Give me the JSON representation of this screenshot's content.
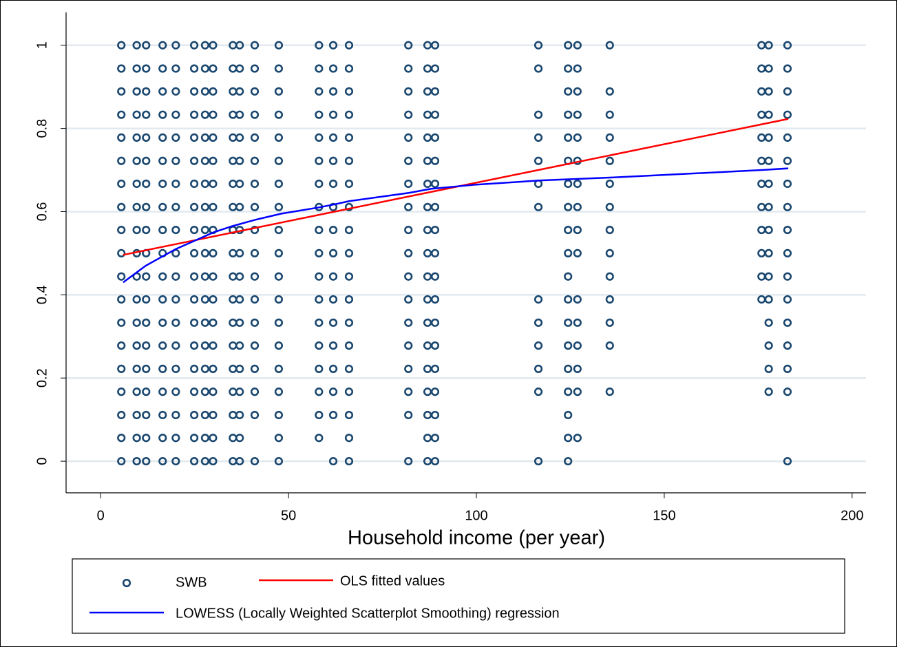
{
  "chart_data": {
    "type": "scatter",
    "x_label": "Household income  (per year)",
    "xlim": [
      -9.2,
      203.7
    ],
    "ylim": [
      -0.076,
      1.079
    ],
    "xticks": [
      0,
      50,
      100,
      150,
      200
    ],
    "yticks": [
      0,
      0.2,
      0.4,
      0.6,
      0.8,
      1
    ],
    "grid": true,
    "series": [
      {
        "name": "SWB",
        "type": "scatter",
        "color": "#1a476f",
        "x": [
          5.5,
          5.5,
          5.5,
          5.5,
          5.5,
          5.5,
          5.5,
          5.5,
          5.5,
          5.5,
          5.5,
          5.5,
          5.5,
          5.5,
          5.5,
          5.5,
          5.5,
          5.5,
          5.5,
          9.6,
          9.6,
          9.6,
          9.6,
          9.6,
          9.6,
          9.6,
          9.6,
          9.6,
          9.6,
          9.6,
          9.6,
          9.6,
          9.6,
          9.6,
          9.6,
          9.6,
          9.6,
          9.6,
          12.1,
          12.1,
          12.1,
          12.1,
          12.1,
          12.1,
          12.1,
          12.1,
          12.1,
          12.1,
          12.1,
          12.1,
          12.1,
          12.1,
          12.1,
          12.1,
          12.1,
          12.1,
          12.1,
          16.5,
          16.5,
          16.5,
          16.5,
          16.5,
          16.5,
          16.5,
          16.5,
          16.5,
          16.5,
          16.5,
          16.5,
          16.5,
          16.5,
          16.5,
          16.5,
          16.5,
          16.5,
          16.5,
          20,
          20,
          20,
          20,
          20,
          20,
          20,
          20,
          20,
          20,
          20,
          20,
          20,
          20,
          20,
          20,
          20,
          20,
          20,
          24.9,
          24.9,
          24.9,
          24.9,
          24.9,
          24.9,
          24.9,
          24.9,
          24.9,
          24.9,
          24.9,
          24.9,
          24.9,
          24.9,
          24.9,
          24.9,
          24.9,
          24.9,
          24.9,
          27.8,
          27.8,
          27.8,
          27.8,
          27.8,
          27.8,
          27.8,
          27.8,
          27.8,
          27.8,
          27.8,
          27.8,
          27.8,
          27.8,
          27.8,
          27.8,
          27.8,
          27.8,
          27.8,
          29.9,
          29.9,
          29.9,
          29.9,
          29.9,
          29.9,
          29.9,
          29.9,
          29.9,
          29.9,
          29.9,
          29.9,
          29.9,
          29.9,
          29.9,
          29.9,
          29.9,
          29.9,
          29.9,
          35.2,
          35.2,
          35.2,
          35.2,
          35.2,
          35.2,
          35.2,
          35.2,
          35.2,
          35.2,
          35.2,
          35.2,
          35.2,
          35.2,
          35.2,
          35.2,
          35.2,
          35.2,
          35.2,
          37,
          37,
          37,
          37,
          37,
          37,
          37,
          37,
          37,
          37,
          37,
          37,
          37,
          37,
          37,
          37,
          37,
          37,
          37,
          41,
          41,
          41,
          41,
          41,
          41,
          41,
          41,
          41,
          41,
          41,
          41,
          41,
          41,
          41,
          41,
          41,
          41,
          47.4,
          47.4,
          47.4,
          47.4,
          47.4,
          47.4,
          47.4,
          47.4,
          47.4,
          47.4,
          47.4,
          47.4,
          47.4,
          47.4,
          47.4,
          47.4,
          47.4,
          47.4,
          47.4,
          58.1,
          58.1,
          58.1,
          58.1,
          58.1,
          58.1,
          58.1,
          58.1,
          58.1,
          58.1,
          58.1,
          58.1,
          58.1,
          58.1,
          58.1,
          58.1,
          58.1,
          58.1,
          61.9,
          61.9,
          61.9,
          61.9,
          61.9,
          61.9,
          61.9,
          61.9,
          61.9,
          61.9,
          61.9,
          61.9,
          61.9,
          61.9,
          61.9,
          61.9,
          61.9,
          61.9,
          66.1,
          66.1,
          66.1,
          66.1,
          66.1,
          66.1,
          66.1,
          66.1,
          66.1,
          66.1,
          66.1,
          66.1,
          66.1,
          66.1,
          66.1,
          66.1,
          66.1,
          66.1,
          66.1,
          81.9,
          81.9,
          81.9,
          81.9,
          81.9,
          81.9,
          81.9,
          81.9,
          81.9,
          81.9,
          81.9,
          81.9,
          81.9,
          81.9,
          81.9,
          81.9,
          81.9,
          81.9,
          87,
          87,
          87,
          87,
          87,
          87,
          87,
          87,
          87,
          87,
          87,
          87,
          87,
          87,
          87,
          87,
          87,
          87,
          87,
          89,
          89,
          89,
          89,
          89,
          89,
          89,
          89,
          89,
          89,
          89,
          89,
          89,
          89,
          89,
          89,
          89,
          89,
          89,
          116.5,
          116.5,
          116.5,
          116.5,
          116.5,
          116.5,
          116.5,
          116.5,
          116.5,
          116.5,
          116.5,
          116.5,
          116.5,
          124.4,
          124.4,
          124.4,
          124.4,
          124.4,
          124.4,
          124.4,
          124.4,
          124.4,
          124.4,
          124.4,
          124.4,
          124.4,
          124.4,
          124.4,
          124.4,
          124.4,
          124.4,
          124.4,
          126.9,
          126.9,
          126.9,
          126.9,
          126.9,
          126.9,
          126.9,
          126.9,
          126.9,
          126.9,
          126.9,
          126.9,
          126.9,
          126.9,
          126.9,
          126.9,
          135.5,
          135.5,
          135.5,
          135.5,
          135.5,
          135.5,
          135.5,
          135.5,
          135.5,
          135.5,
          135.5,
          135.5,
          135.5,
          135.5,
          175.9,
          175.9,
          175.9,
          175.9,
          175.9,
          175.9,
          175.9,
          175.9,
          175.9,
          175.9,
          175.9,
          175.9,
          177.8,
          177.8,
          177.8,
          177.8,
          177.8,
          177.8,
          177.8,
          177.8,
          177.8,
          177.8,
          177.8,
          177.8,
          177.8,
          177.8,
          177.8,
          177.8,
          182.8,
          182.8,
          182.8,
          182.8,
          182.8,
          182.8,
          182.8,
          182.8,
          182.8,
          182.8,
          182.8,
          182.8,
          182.8,
          182.8,
          182.8,
          182.8,
          182.8
        ],
        "values": [
          0,
          0.056,
          0.111,
          0.167,
          0.222,
          0.278,
          0.333,
          0.389,
          0.444,
          0.5,
          0.556,
          0.611,
          0.667,
          0.722,
          0.778,
          0.833,
          0.889,
          0.944,
          1,
          0,
          0.056,
          0.111,
          0.167,
          0.222,
          0.278,
          0.333,
          0.389,
          0.444,
          0.5,
          0.556,
          0.611,
          0.667,
          0.722,
          0.778,
          0.833,
          0.889,
          0.944,
          1,
          0,
          0.056,
          0.111,
          0.167,
          0.222,
          0.278,
          0.333,
          0.389,
          0.444,
          0.5,
          0.556,
          0.611,
          0.667,
          0.722,
          0.778,
          0.833,
          0.889,
          0.944,
          1,
          0,
          0.056,
          0.111,
          0.167,
          0.222,
          0.278,
          0.333,
          0.389,
          0.444,
          0.5,
          0.556,
          0.611,
          0.667,
          0.722,
          0.778,
          0.833,
          0.889,
          0.944,
          1,
          0,
          0.056,
          0.111,
          0.167,
          0.222,
          0.278,
          0.333,
          0.389,
          0.444,
          0.5,
          0.556,
          0.611,
          0.667,
          0.722,
          0.778,
          0.833,
          0.889,
          0.944,
          1,
          0,
          0.056,
          0.111,
          0.167,
          0.222,
          0.278,
          0.333,
          0.389,
          0.444,
          0.5,
          0.556,
          0.611,
          0.667,
          0.722,
          0.778,
          0.833,
          0.889,
          0.944,
          1,
          0,
          0.056,
          0.111,
          0.167,
          0.222,
          0.278,
          0.333,
          0.389,
          0.444,
          0.5,
          0.556,
          0.611,
          0.667,
          0.722,
          0.778,
          0.833,
          0.889,
          0.944,
          1,
          0,
          0.056,
          0.111,
          0.167,
          0.222,
          0.278,
          0.333,
          0.389,
          0.444,
          0.5,
          0.556,
          0.611,
          0.667,
          0.722,
          0.778,
          0.833,
          0.889,
          0.944,
          1,
          0,
          0.056,
          0.111,
          0.167,
          0.222,
          0.278,
          0.333,
          0.389,
          0.444,
          0.5,
          0.556,
          0.611,
          0.667,
          0.722,
          0.778,
          0.833,
          0.889,
          0.944,
          1,
          0,
          0.056,
          0.111,
          0.167,
          0.222,
          0.278,
          0.333,
          0.389,
          0.444,
          0.5,
          0.556,
          0.611,
          0.667,
          0.722,
          0.778,
          0.833,
          0.889,
          0.944,
          1,
          0,
          0.111,
          0.167,
          0.222,
          0.278,
          0.333,
          0.389,
          0.444,
          0.5,
          0.556,
          0.611,
          0.667,
          0.722,
          0.778,
          0.833,
          0.889,
          0.944,
          1,
          0,
          0.056,
          0.111,
          0.167,
          0.222,
          0.278,
          0.333,
          0.389,
          0.444,
          0.5,
          0.556,
          0.611,
          0.667,
          0.722,
          0.778,
          0.833,
          0.889,
          0.944,
          1,
          0.056,
          0.111,
          0.167,
          0.222,
          0.278,
          0.333,
          0.389,
          0.444,
          0.5,
          0.556,
          0.611,
          0.667,
          0.722,
          0.778,
          0.833,
          0.889,
          0.944,
          1,
          0,
          0.111,
          0.167,
          0.222,
          0.278,
          0.333,
          0.389,
          0.444,
          0.5,
          0.556,
          0.611,
          0.667,
          0.722,
          0.778,
          0.833,
          0.889,
          0.944,
          1,
          0,
          0.056,
          0.111,
          0.167,
          0.222,
          0.278,
          0.333,
          0.389,
          0.444,
          0.5,
          0.556,
          0.611,
          0.667,
          0.722,
          0.778,
          0.833,
          0.889,
          0.944,
          1,
          0,
          0.111,
          0.167,
          0.222,
          0.278,
          0.333,
          0.389,
          0.444,
          0.5,
          0.556,
          0.611,
          0.667,
          0.722,
          0.778,
          0.833,
          0.889,
          0.944,
          1,
          0,
          0.056,
          0.111,
          0.167,
          0.222,
          0.278,
          0.333,
          0.389,
          0.444,
          0.5,
          0.556,
          0.611,
          0.667,
          0.722,
          0.778,
          0.833,
          0.889,
          0.944,
          1,
          0,
          0.056,
          0.111,
          0.167,
          0.222,
          0.278,
          0.333,
          0.389,
          0.444,
          0.5,
          0.556,
          0.611,
          0.667,
          0.722,
          0.778,
          0.833,
          0.889,
          0.944,
          1,
          0,
          0.167,
          0.222,
          0.278,
          0.333,
          0.389,
          0.611,
          0.667,
          0.722,
          0.778,
          0.833,
          0.944,
          1,
          0,
          0.056,
          0.111,
          0.167,
          0.222,
          0.278,
          0.333,
          0.389,
          0.444,
          0.5,
          0.556,
          0.611,
          0.667,
          0.722,
          0.778,
          0.833,
          0.889,
          0.944,
          1,
          0.056,
          0.167,
          0.222,
          0.278,
          0.333,
          0.389,
          0.5,
          0.556,
          0.611,
          0.667,
          0.722,
          0.778,
          0.833,
          0.889,
          0.944,
          1,
          0.167,
          0.278,
          0.333,
          0.389,
          0.444,
          0.5,
          0.556,
          0.611,
          0.667,
          0.722,
          0.778,
          0.833,
          0.889,
          1,
          0.389,
          0.444,
          0.5,
          0.556,
          0.611,
          0.667,
          0.722,
          0.778,
          0.833,
          0.889,
          0.944,
          1,
          0.167,
          0.222,
          0.278,
          0.333,
          0.389,
          0.444,
          0.5,
          0.556,
          0.611,
          0.667,
          0.722,
          0.778,
          0.833,
          0.889,
          0.944,
          1,
          0,
          0.167,
          0.222,
          0.278,
          0.333,
          0.389,
          0.444,
          0.5,
          0.556,
          0.611,
          0.667,
          0.722,
          0.778,
          0.833,
          0.889,
          0.944,
          1
        ]
      },
      {
        "name": "OLS fitted values",
        "type": "line",
        "color": "#ff0000",
        "x": [
          6,
          183
        ],
        "values": [
          0.496,
          0.823
        ]
      },
      {
        "name": "LOWESS (Locally Weighted Scatterplot Smoothing) regression",
        "type": "line",
        "color": "#0000ff",
        "x": [
          6,
          9,
          12,
          16,
          20,
          25,
          30,
          35,
          41,
          48,
          58,
          62,
          66,
          82,
          88,
          100,
          117,
          125,
          136,
          176,
          183
        ],
        "values": [
          0.43,
          0.45,
          0.47,
          0.49,
          0.51,
          0.53,
          0.55,
          0.565,
          0.58,
          0.595,
          0.61,
          0.617,
          0.625,
          0.645,
          0.655,
          0.665,
          0.675,
          0.678,
          0.682,
          0.7,
          0.704
        ]
      }
    ]
  }
}
